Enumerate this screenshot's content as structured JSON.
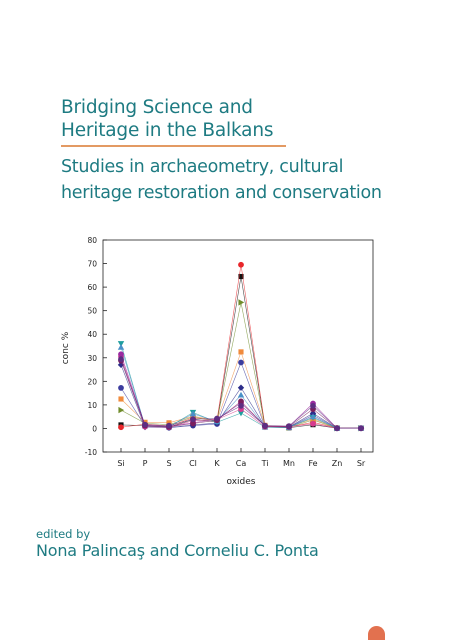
{
  "title": {
    "line1": "Bridging Science and",
    "line2": "Heritage in the Balkans"
  },
  "subtitle": {
    "line1": "Studies in archaeometry, cultural",
    "line2": "heritage restoration and conservation"
  },
  "credits": {
    "edited_label": "edited by",
    "editors": "Nona Palincaş and Corneliu C. Ponta"
  },
  "colors": {
    "accent_teal": "#1e7b82",
    "rule_orange": "#e39a63"
  },
  "chart_data": {
    "type": "line",
    "xlabel": "oxides",
    "ylabel": "conc %",
    "categories": [
      "Si",
      "P",
      "S",
      "Cl",
      "K",
      "Ca",
      "Ti",
      "Mn",
      "Fe",
      "Zn",
      "Sr"
    ],
    "yticks": [
      "80",
      "70",
      "60",
      "50",
      "40",
      "30",
      "20",
      "10",
      "0",
      "-10"
    ],
    "ylim": [
      -10,
      80
    ],
    "grid": false,
    "series": [
      {
        "color": "#111111",
        "marker": "square",
        "values": [
          1.5,
          1.2,
          0.6,
          3.8,
          2.8,
          64.5,
          0.6,
          0.3,
          1.6,
          0.1,
          0.1
        ]
      },
      {
        "color": "#e8262a",
        "marker": "circle",
        "values": [
          0.5,
          1.8,
          1.0,
          4.4,
          3.6,
          69.5,
          1.0,
          0.6,
          2.6,
          0.2,
          0.1
        ]
      },
      {
        "color": "#6f8c2a",
        "marker": "triangle-right",
        "values": [
          7.8,
          2.2,
          1.6,
          4.9,
          3.1,
          53.5,
          0.9,
          0.4,
          3.6,
          0.1,
          0.1
        ]
      },
      {
        "color": "#f08a3c",
        "marker": "square",
        "values": [
          12.5,
          2.6,
          2.4,
          5.2,
          3.4,
          32.5,
          1.3,
          0.8,
          4.1,
          0.2,
          0.1
        ]
      },
      {
        "color": "#3c3c9e",
        "marker": "circle",
        "values": [
          17.2,
          1.0,
          0.3,
          1.2,
          1.9,
          28.0,
          0.7,
          0.5,
          5.6,
          0.1,
          0.1
        ]
      },
      {
        "color": "#2d2d8a",
        "marker": "diamond",
        "values": [
          27.0,
          0.6,
          0.4,
          1.5,
          2.3,
          17.3,
          0.8,
          0.6,
          6.4,
          0.1,
          0.1
        ]
      },
      {
        "color": "#1f9e9e",
        "marker": "triangle-down",
        "values": [
          36.0,
          0.9,
          0.6,
          6.8,
          2.6,
          6.5,
          0.6,
          0.4,
          4.6,
          0.1,
          0.1
        ]
      },
      {
        "color": "#4a90c8",
        "marker": "triangle-up",
        "values": [
          34.5,
          1.1,
          0.8,
          6.2,
          3.0,
          14.2,
          0.7,
          0.5,
          5.0,
          0.1,
          0.1
        ]
      },
      {
        "color": "#d63b8e",
        "marker": "circle",
        "values": [
          30.5,
          0.8,
          0.5,
          3.3,
          3.8,
          8.2,
          0.8,
          0.7,
          2.0,
          0.1,
          0.1
        ]
      },
      {
        "color": "#9b2ba0",
        "marker": "circle",
        "values": [
          31.5,
          1.4,
          0.9,
          2.4,
          4.0,
          10.8,
          1.1,
          0.9,
          10.6,
          0.1,
          0.1
        ]
      },
      {
        "color": "#7a1e5e",
        "marker": "circle",
        "values": [
          28.8,
          1.2,
          0.7,
          2.1,
          3.5,
          11.5,
          1.0,
          0.8,
          8.2,
          0.1,
          0.1
        ]
      },
      {
        "color": "#5e2e82",
        "marker": "circle",
        "values": [
          29.4,
          1.6,
          1.2,
          3.9,
          4.2,
          9.6,
          1.2,
          1.0,
          9.6,
          0.1,
          0.1
        ]
      }
    ]
  }
}
